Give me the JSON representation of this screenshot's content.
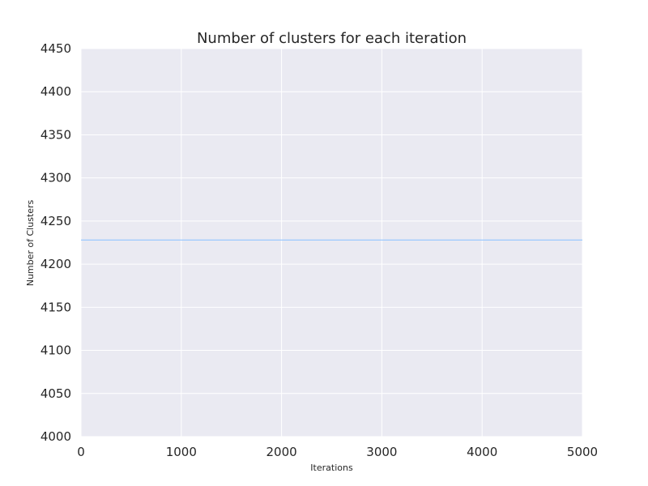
{
  "chart_data": {
    "type": "line",
    "title": "Number of clusters for each iteration",
    "xlabel": "Iterations",
    "ylabel": "Number of Clusters",
    "xlim": [
      0,
      5000
    ],
    "ylim": [
      4000,
      4450
    ],
    "xticks": [
      0,
      1000,
      2000,
      3000,
      4000,
      5000
    ],
    "yticks": [
      4000,
      4050,
      4100,
      4150,
      4200,
      4250,
      4300,
      4350,
      4400,
      4450
    ],
    "grid": true,
    "background_color": "#eaeaf2",
    "grid_color": "#ffffff",
    "series": [
      {
        "color": "#92c6ff",
        "x": [
          0,
          5000
        ],
        "y": [
          4228,
          4228
        ]
      }
    ]
  }
}
